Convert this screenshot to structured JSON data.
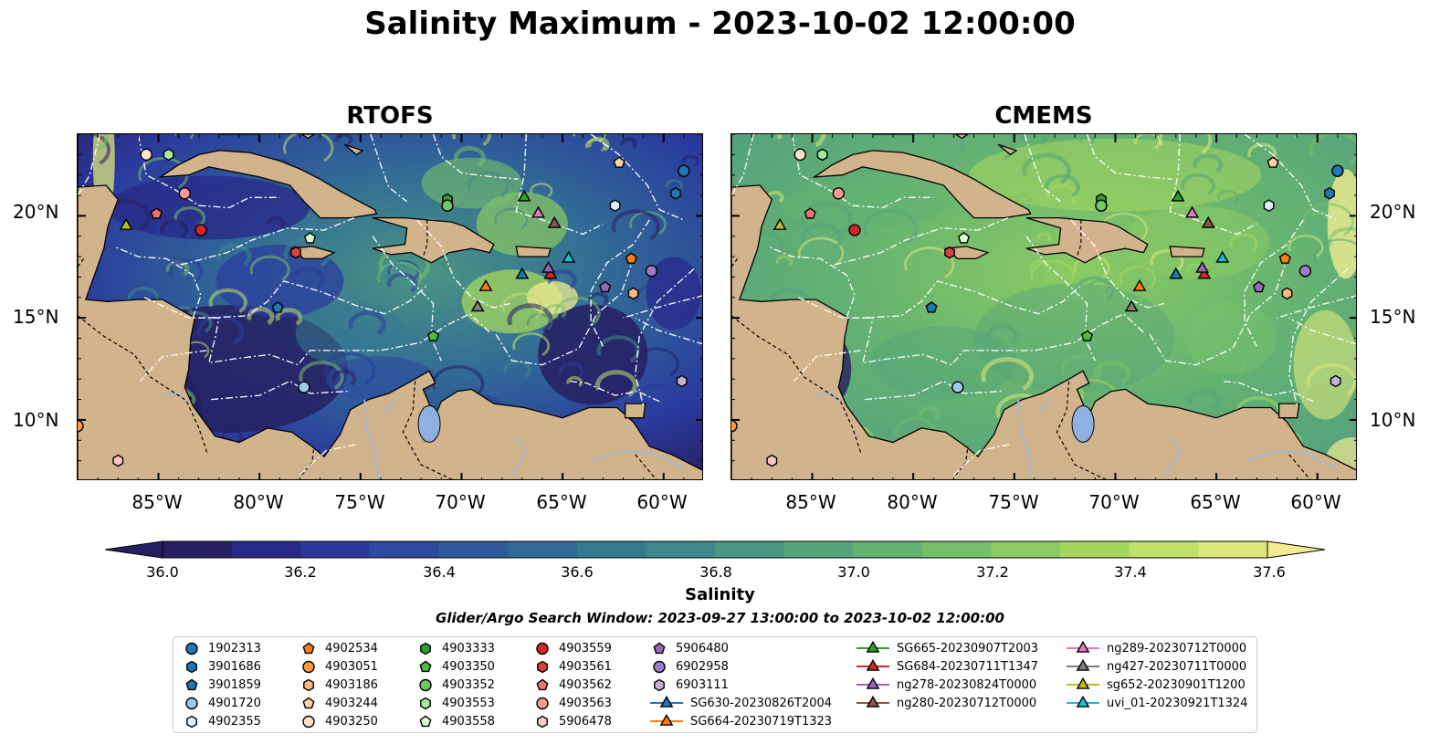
{
  "title": "Salinity Maximum - 2023-10-02 12:00:00",
  "panels": [
    {
      "key": "left",
      "title": "RTOFS"
    },
    {
      "key": "right",
      "title": "CMEMS"
    }
  ],
  "lat_labels": [
    "20°N",
    "15°N",
    "10°N"
  ],
  "lon_labels": [
    "85°W",
    "80°W",
    "75°W",
    "70°W",
    "65°W",
    "60°W"
  ],
  "colorbar": {
    "label": "Salinity",
    "ticks": [
      "36.0",
      "36.2",
      "36.4",
      "36.6",
      "36.8",
      "37.0",
      "37.2",
      "37.4",
      "37.6"
    ],
    "min": 36.0,
    "max": 37.6,
    "colors": [
      "#261f62",
      "#282a8a",
      "#2a3a9e",
      "#2e4aa0",
      "#2f5a9c",
      "#316a96",
      "#367a90",
      "#3f898a",
      "#4a9683",
      "#56a47b",
      "#64b272",
      "#76bf69",
      "#8bcb62",
      "#a5d75f",
      "#c0e068",
      "#dde87a",
      "#f1ec90"
    ]
  },
  "caption": "Glider/Argo Search Window: 2023-09-27 13:00:00 to 2023-10-02 12:00:00",
  "land_color": "#d2b48c",
  "lake_color": "#8fb0e0",
  "legend": [
    {
      "label": "1902313",
      "marker": "circle",
      "color": "#1f77b4"
    },
    {
      "label": "3901686",
      "marker": "hexagon",
      "color": "#1f77b4"
    },
    {
      "label": "3901859",
      "marker": "pentagon",
      "color": "#1f77b4"
    },
    {
      "label": "4901720",
      "marker": "circle",
      "color": "#9ec9ef"
    },
    {
      "label": "4902355",
      "marker": "hexagon",
      "color": "#d8ecfa"
    },
    {
      "label": "4902534",
      "marker": "pentagon",
      "color": "#ff7f0e"
    },
    {
      "label": "4903051",
      "marker": "circle",
      "color": "#ff9a3c"
    },
    {
      "label": "4903186",
      "marker": "hexagon",
      "color": "#ffbb78"
    },
    {
      "label": "4903244",
      "marker": "pentagon",
      "color": "#ffd1a6"
    },
    {
      "label": "4903250",
      "marker": "circle",
      "color": "#ffe4cc"
    },
    {
      "label": "4903333",
      "marker": "hexagon",
      "color": "#2ca02c"
    },
    {
      "label": "4903350",
      "marker": "pentagon",
      "color": "#4cbf3c"
    },
    {
      "label": "4903352",
      "marker": "circle",
      "color": "#6ccb5f"
    },
    {
      "label": "4903553",
      "marker": "hexagon",
      "color": "#a8e6a0"
    },
    {
      "label": "4903558",
      "marker": "pentagon",
      "color": "#dffad0"
    },
    {
      "label": "4903559",
      "marker": "circle",
      "color": "#d62728"
    },
    {
      "label": "4903561",
      "marker": "hexagon",
      "color": "#e0403a"
    },
    {
      "label": "4903562",
      "marker": "pentagon",
      "color": "#f07070"
    },
    {
      "label": "4903563",
      "marker": "circle",
      "color": "#ff9896"
    },
    {
      "label": "5906478",
      "marker": "hexagon",
      "color": "#ffc8c6"
    },
    {
      "label": "5906480",
      "marker": "pentagon",
      "color": "#9467bd"
    },
    {
      "label": "6902958",
      "marker": "circle",
      "color": "#a07ccc"
    },
    {
      "label": "6903111",
      "marker": "hexagon",
      "color": "#c5b0d5"
    },
    {
      "label": "SG630-20230826T2004",
      "marker": "triangle",
      "color": "#1f77b4"
    },
    {
      "label": "SG664-20230719T1323",
      "marker": "triangle",
      "color": "#ff7f0e"
    },
    {
      "label": "SG665-20230907T2003",
      "marker": "triangle",
      "color": "#2ca02c"
    },
    {
      "label": "SG684-20230711T1347",
      "marker": "triangle",
      "color": "#d62728"
    },
    {
      "label": "ng278-20230824T0000",
      "marker": "triangle",
      "color": "#9467bd"
    },
    {
      "label": "ng280-20230712T0000",
      "marker": "triangle",
      "color": "#8c564b"
    },
    {
      "label": "ng289-20230712T0000",
      "marker": "triangle",
      "color": "#e377c2"
    },
    {
      "label": "ng427-20230711T0000",
      "marker": "triangle",
      "color": "#7f7f7f"
    },
    {
      "label": "sg652-20230901T1200",
      "marker": "triangle",
      "color": "#bcbd22"
    },
    {
      "label": "uvi_01-20230921T1324",
      "marker": "triangle",
      "color": "#17becf"
    }
  ],
  "map_extent": {
    "lon": [
      -89,
      -58
    ],
    "lat": [
      7,
      24
    ]
  },
  "observations": [
    {
      "id": "1902313",
      "lon": -59.0,
      "lat": 22.2
    },
    {
      "id": "3901686",
      "lon": -59.4,
      "lat": 21.1
    },
    {
      "id": "3901859",
      "lon": -79.1,
      "lat": 15.5
    },
    {
      "id": "4901720",
      "lon": -77.8,
      "lat": 11.6
    },
    {
      "id": "4902355",
      "lon": -62.4,
      "lat": 20.5
    },
    {
      "id": "4902534",
      "lon": -61.6,
      "lat": 17.9
    },
    {
      "id": "4903051",
      "lon": -89.0,
      "lat": 9.7
    },
    {
      "id": "4903186",
      "lon": -61.5,
      "lat": 16.2
    },
    {
      "id": "4903244",
      "lon": -62.2,
      "lat": 22.6
    },
    {
      "id": "4903250",
      "lon": -85.6,
      "lat": 23.0
    },
    {
      "id": "4903333",
      "lon": -70.7,
      "lat": 20.8
    },
    {
      "id": "4903350",
      "lon": -71.4,
      "lat": 14.1
    },
    {
      "id": "4903352",
      "lon": -70.7,
      "lat": 20.5
    },
    {
      "id": "4903553",
      "lon": -84.5,
      "lat": 23.0
    },
    {
      "id": "4903558",
      "lon": -77.5,
      "lat": 18.9
    },
    {
      "id": "4903559",
      "lon": -82.9,
      "lat": 19.3
    },
    {
      "id": "4903561",
      "lon": -78.2,
      "lat": 18.2
    },
    {
      "id": "4903562",
      "lon": -85.1,
      "lat": 20.1
    },
    {
      "id": "4903563",
      "lon": -83.7,
      "lat": 21.1
    },
    {
      "id": "5906478",
      "lon": -87.0,
      "lat": 8.0
    },
    {
      "id": "5906480",
      "lon": -62.9,
      "lat": 16.5
    },
    {
      "id": "6902958",
      "lon": -60.6,
      "lat": 17.3
    },
    {
      "id": "6903111",
      "lon": -59.1,
      "lat": 11.9
    },
    {
      "id": "SG630-20230826T2004",
      "lon": -67.0,
      "lat": 17.1
    },
    {
      "id": "SG664-20230719T1323",
      "lon": -68.8,
      "lat": 16.5
    },
    {
      "id": "SG665-20230907T2003",
      "lon": -66.9,
      "lat": 20.9
    },
    {
      "id": "SG684-20230711T1347",
      "lon": -65.6,
      "lat": 17.1
    },
    {
      "id": "ng278-20230824T0000",
      "lon": -65.7,
      "lat": 17.4
    },
    {
      "id": "ng280-20230712T0000",
      "lon": -65.4,
      "lat": 19.6
    },
    {
      "id": "ng289-20230712T0000",
      "lon": -66.2,
      "lat": 20.1
    },
    {
      "id": "ng427-20230711T0000",
      "lon": -69.2,
      "lat": 15.5
    },
    {
      "id": "sg652-20230901T1200",
      "lon": -86.6,
      "lat": 19.5
    },
    {
      "id": "uvi_01-20230921T1324",
      "lon": -64.7,
      "lat": 17.9
    }
  ]
}
